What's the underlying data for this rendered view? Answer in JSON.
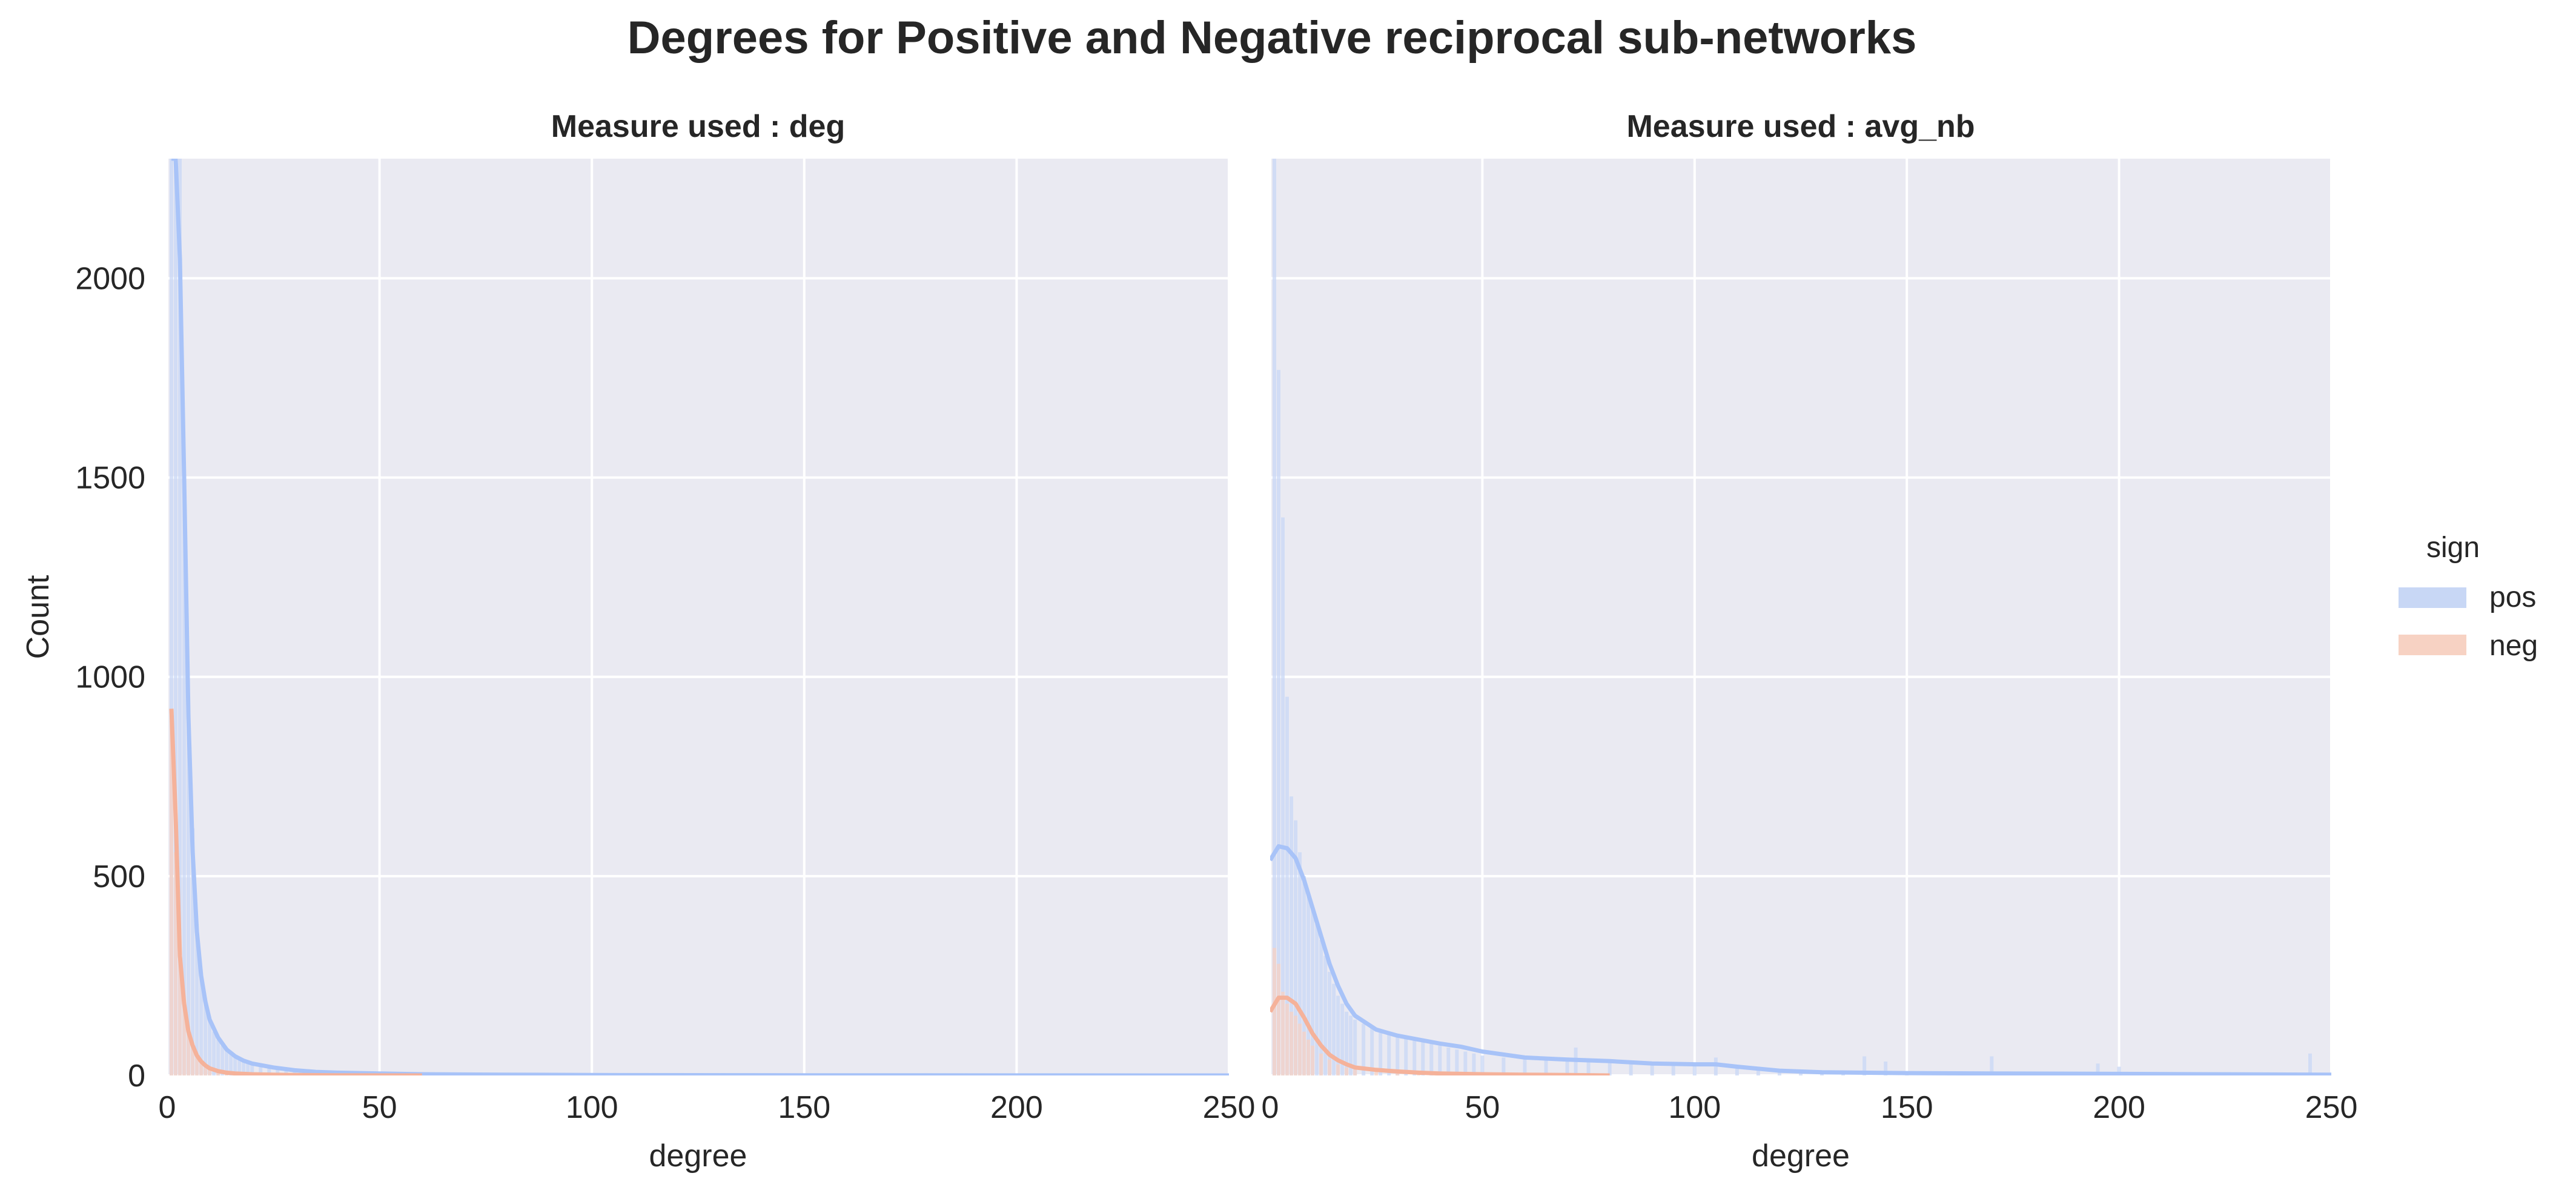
{
  "figure": {
    "title": "Degrees for Positive and Negative reciprocal sub-networks"
  },
  "legend": {
    "title": "sign",
    "placement": "right",
    "entries": [
      {
        "label": "pos",
        "color": "#c8d7f5"
      },
      {
        "label": "neg",
        "color": "#f7d2c3"
      }
    ]
  },
  "colors": {
    "background": "#eaeaf2",
    "grid": "#ffffff",
    "pos_bar": "#c8d7f5",
    "pos_line": "#a8c3f8",
    "neg_bar": "#f7d2c3",
    "neg_line": "#f5b29a"
  },
  "chart_data": [
    {
      "type": "bar",
      "title": "Measure used : deg",
      "xlabel": "degree",
      "ylabel": "Count",
      "xlim": [
        0,
        250
      ],
      "ylim": [
        0,
        2300
      ],
      "x_ticks": [
        "0",
        "50",
        "100",
        "150",
        "200",
        "250"
      ],
      "y_ticks": [
        "0",
        "500",
        "1000",
        "1500",
        "2000"
      ],
      "grid": true,
      "series": [
        {
          "name": "pos",
          "bars": [
            [
              1,
              2300
            ],
            [
              2,
              2300
            ],
            [
              3,
              2300
            ],
            [
              4,
              1500
            ],
            [
              5,
              950
            ],
            [
              6,
              620
            ],
            [
              7,
              380
            ],
            [
              8,
              260
            ],
            [
              9,
              180
            ],
            [
              10,
              140
            ],
            [
              11,
              110
            ],
            [
              12,
              90
            ],
            [
              13,
              75
            ],
            [
              14,
              65
            ],
            [
              15,
              55
            ],
            [
              16,
              48
            ],
            [
              17,
              42
            ],
            [
              18,
              37
            ],
            [
              19,
              33
            ],
            [
              20,
              30
            ],
            [
              22,
              25
            ],
            [
              24,
              20
            ],
            [
              26,
              17
            ],
            [
              28,
              14
            ],
            [
              30,
              12
            ],
            [
              33,
              10
            ],
            [
              36,
              8
            ],
            [
              40,
              6
            ],
            [
              45,
              5
            ],
            [
              50,
              4
            ],
            [
              60,
              3
            ],
            [
              70,
              2
            ],
            [
              80,
              2
            ],
            [
              100,
              1
            ],
            [
              120,
              1
            ]
          ],
          "kde": [
            [
              1,
              2300
            ],
            [
              2,
              2300
            ],
            [
              3,
              2050
            ],
            [
              4,
              1500
            ],
            [
              5,
              900
            ],
            [
              6,
              560
            ],
            [
              7,
              360
            ],
            [
              8,
              250
            ],
            [
              9,
              185
            ],
            [
              10,
              140
            ],
            [
              12,
              95
            ],
            [
              14,
              65
            ],
            [
              16,
              48
            ],
            [
              18,
              37
            ],
            [
              20,
              30
            ],
            [
              25,
              20
            ],
            [
              30,
              13
            ],
            [
              35,
              9
            ],
            [
              40,
              7
            ],
            [
              50,
              5
            ],
            [
              60,
              3
            ],
            [
              80,
              2
            ],
            [
              100,
              1
            ],
            [
              150,
              0.5
            ],
            [
              200,
              0.2
            ],
            [
              250,
              0
            ]
          ]
        },
        {
          "name": "neg",
          "bars": [
            [
              1,
              920
            ],
            [
              2,
              560
            ],
            [
              3,
              300
            ],
            [
              4,
              180
            ],
            [
              5,
              110
            ],
            [
              6,
              70
            ],
            [
              7,
              45
            ],
            [
              8,
              30
            ],
            [
              9,
              20
            ],
            [
              10,
              15
            ],
            [
              12,
              10
            ],
            [
              14,
              6
            ],
            [
              16,
              4
            ],
            [
              20,
              2
            ],
            [
              25,
              1
            ]
          ],
          "kde": [
            [
              1,
              920
            ],
            [
              2,
              650
            ],
            [
              3,
              300
            ],
            [
              4,
              180
            ],
            [
              5,
              110
            ],
            [
              6,
              75
            ],
            [
              7,
              50
            ],
            [
              8,
              35
            ],
            [
              9,
              25
            ],
            [
              10,
              18
            ],
            [
              12,
              11
            ],
            [
              14,
              7
            ],
            [
              16,
              5
            ],
            [
              20,
              3
            ],
            [
              25,
              2
            ],
            [
              30,
              1
            ],
            [
              40,
              0.5
            ],
            [
              60,
              0
            ]
          ]
        }
      ]
    },
    {
      "type": "bar",
      "title": "Measure used : avg_nb",
      "xlabel": "degree",
      "ylabel": "",
      "xlim": [
        0,
        250
      ],
      "ylim": [
        0,
        2300
      ],
      "x_ticks": [
        "0",
        "50",
        "100",
        "150",
        "200",
        "250"
      ],
      "y_ticks": [],
      "grid": true,
      "series": [
        {
          "name": "pos",
          "bars": [
            [
              1,
              2300
            ],
            [
              2,
              1770
            ],
            [
              3,
              1400
            ],
            [
              4,
              950
            ],
            [
              5,
              700
            ],
            [
              6,
              640
            ],
            [
              7,
              560
            ],
            [
              8,
              500
            ],
            [
              9,
              460
            ],
            [
              10,
              420
            ],
            [
              11,
              380
            ],
            [
              12,
              340
            ],
            [
              13,
              300
            ],
            [
              14,
              260
            ],
            [
              15,
              230
            ],
            [
              16,
              200
            ],
            [
              17,
              180
            ],
            [
              18,
              160
            ],
            [
              19,
              150
            ],
            [
              20,
              140
            ],
            [
              22,
              130
            ],
            [
              24,
              120
            ],
            [
              26,
              115
            ],
            [
              28,
              110
            ],
            [
              30,
              100
            ],
            [
              32,
              100
            ],
            [
              34,
              90
            ],
            [
              36,
              85
            ],
            [
              38,
              80
            ],
            [
              40,
              75
            ],
            [
              42,
              70
            ],
            [
              44,
              65
            ],
            [
              46,
              60
            ],
            [
              48,
              55
            ],
            [
              50,
              50
            ],
            [
              55,
              45
            ],
            [
              60,
              40
            ],
            [
              65,
              38
            ],
            [
              70,
              40
            ],
            [
              72,
              70
            ],
            [
              75,
              38
            ],
            [
              80,
              35
            ],
            [
              85,
              32
            ],
            [
              90,
              30
            ],
            [
              95,
              30
            ],
            [
              100,
              30
            ],
            [
              105,
              45
            ],
            [
              110,
              25
            ],
            [
              115,
              20
            ],
            [
              120,
              15
            ],
            [
              125,
              12
            ],
            [
              130,
              10
            ],
            [
              135,
              8
            ],
            [
              140,
              48
            ],
            [
              145,
              35
            ],
            [
              150,
              8
            ],
            [
              160,
              6
            ],
            [
              165,
              6
            ],
            [
              170,
              48
            ],
            [
              180,
              5
            ],
            [
              190,
              4
            ],
            [
              195,
              30
            ],
            [
              200,
              22
            ],
            [
              220,
              3
            ],
            [
              240,
              3
            ],
            [
              245,
              55
            ],
            [
              248,
              5
            ]
          ],
          "kde": [
            [
              0,
              540
            ],
            [
              2,
              575
            ],
            [
              4,
              570
            ],
            [
              6,
              545
            ],
            [
              8,
              490
            ],
            [
              10,
              420
            ],
            [
              12,
              350
            ],
            [
              14,
              280
            ],
            [
              16,
              225
            ],
            [
              18,
              180
            ],
            [
              20,
              150
            ],
            [
              25,
              115
            ],
            [
              30,
              100
            ],
            [
              35,
              90
            ],
            [
              40,
              80
            ],
            [
              45,
              72
            ],
            [
              50,
              60
            ],
            [
              60,
              45
            ],
            [
              70,
              40
            ],
            [
              80,
              36
            ],
            [
              90,
              30
            ],
            [
              100,
              28
            ],
            [
              105,
              28
            ],
            [
              110,
              22
            ],
            [
              120,
              12
            ],
            [
              130,
              8
            ],
            [
              150,
              6
            ],
            [
              170,
              5
            ],
            [
              200,
              4
            ],
            [
              220,
              3
            ],
            [
              250,
              2
            ]
          ]
        },
        {
          "name": "neg",
          "bars": [
            [
              1,
              320
            ],
            [
              2,
              280
            ],
            [
              3,
              210
            ],
            [
              4,
              180
            ],
            [
              5,
              160
            ],
            [
              6,
              150
            ],
            [
              7,
              130
            ],
            [
              8,
              110
            ],
            [
              9,
              90
            ],
            [
              10,
              75
            ],
            [
              12,
              55
            ],
            [
              14,
              40
            ],
            [
              16,
              28
            ],
            [
              18,
              20
            ],
            [
              20,
              15
            ],
            [
              25,
              10
            ],
            [
              30,
              8
            ],
            [
              35,
              6
            ],
            [
              40,
              4
            ],
            [
              50,
              3
            ],
            [
              60,
              2
            ],
            [
              70,
              1
            ]
          ],
          "kde": [
            [
              0,
              160
            ],
            [
              2,
              195
            ],
            [
              4,
              195
            ],
            [
              6,
              180
            ],
            [
              8,
              145
            ],
            [
              10,
              105
            ],
            [
              12,
              75
            ],
            [
              14,
              52
            ],
            [
              16,
              38
            ],
            [
              18,
              28
            ],
            [
              20,
              20
            ],
            [
              25,
              14
            ],
            [
              30,
              10
            ],
            [
              35,
              7
            ],
            [
              40,
              5
            ],
            [
              50,
              3
            ],
            [
              60,
              2
            ],
            [
              70,
              1
            ],
            [
              80,
              0
            ]
          ]
        }
      ]
    }
  ]
}
